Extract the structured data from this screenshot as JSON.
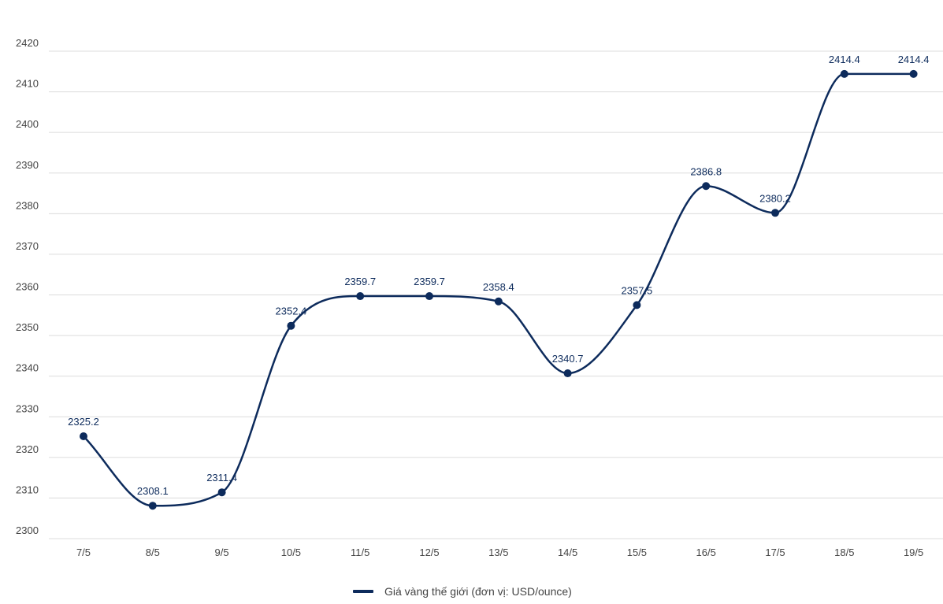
{
  "chart_data": {
    "type": "line",
    "title": "",
    "xlabel": "",
    "ylabel": "",
    "categories": [
      "7/5",
      "8/5",
      "9/5",
      "10/5",
      "11/5",
      "12/5",
      "13/5",
      "14/5",
      "15/5",
      "16/5",
      "17/5",
      "18/5",
      "19/5"
    ],
    "y_ticks": [
      2300,
      2310,
      2320,
      2330,
      2340,
      2350,
      2360,
      2370,
      2380,
      2390,
      2400,
      2410,
      2420
    ],
    "ylim": [
      2300,
      2420
    ],
    "grid": true,
    "legend_position": "bottom-center",
    "series": [
      {
        "name": "Giá vàng thế giới (đơn vị: USD/ounce)",
        "color": "#0d2b5c",
        "values": [
          2325.2,
          2308.1,
          2311.4,
          2352.4,
          2359.7,
          2359.7,
          2358.4,
          2340.7,
          2357.5,
          2386.8,
          2380.2,
          2414.4,
          2414.4
        ],
        "labels": [
          "2325.2",
          "2308.1",
          "2311.4",
          "2352.4",
          "2359.7",
          "2359.7",
          "2358.4",
          "2340.7",
          "2357.5",
          "2386.8",
          "2380.2",
          "2414.4",
          "2414.4"
        ]
      }
    ]
  }
}
